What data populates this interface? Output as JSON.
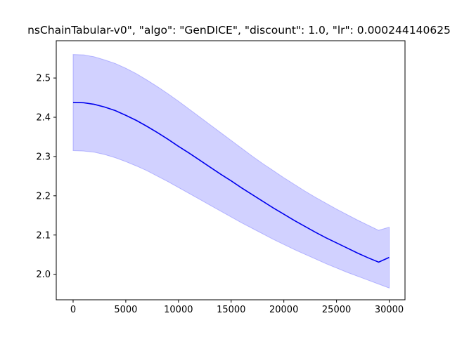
{
  "chart_data": {
    "type": "line",
    "title": "nsChainTabular-v0\", \"algo\": \"GenDICE\", \"discount\": 1.0, \"lr\": 0.000244140625",
    "xlabel": "",
    "ylabel": "",
    "xlim": [
      -1600,
      31500
    ],
    "ylim": [
      1.935,
      2.595
    ],
    "x_ticks": [
      0,
      5000,
      10000,
      15000,
      20000,
      25000,
      30000
    ],
    "y_ticks": [
      2.0,
      2.1,
      2.2,
      2.3,
      2.4,
      2.5
    ],
    "grid": false,
    "legend": "none",
    "series": [
      {
        "color": "#0000ee",
        "band_color": "#0000ff",
        "x": [
          0,
          1000,
          2000,
          3000,
          4000,
          5000,
          6000,
          7000,
          8000,
          9000,
          10000,
          11000,
          12000,
          13000,
          14000,
          15000,
          16000,
          17000,
          18000,
          19000,
          20000,
          21000,
          22000,
          23000,
          24000,
          25000,
          26000,
          27000,
          28000,
          29000,
          30000
        ],
        "mean": [
          2.438,
          2.437,
          2.433,
          2.426,
          2.417,
          2.405,
          2.392,
          2.377,
          2.361,
          2.344,
          2.326,
          2.309,
          2.291,
          2.273,
          2.255,
          2.238,
          2.22,
          2.203,
          2.186,
          2.169,
          2.153,
          2.137,
          2.122,
          2.107,
          2.093,
          2.08,
          2.067,
          2.054,
          2.042,
          2.031,
          2.043
        ],
        "upper": [
          2.56,
          2.559,
          2.554,
          2.546,
          2.537,
          2.525,
          2.511,
          2.495,
          2.478,
          2.46,
          2.441,
          2.421,
          2.401,
          2.381,
          2.361,
          2.341,
          2.321,
          2.301,
          2.282,
          2.264,
          2.246,
          2.229,
          2.212,
          2.196,
          2.181,
          2.166,
          2.152,
          2.138,
          2.125,
          2.112,
          2.12
        ],
        "lower": [
          2.315,
          2.314,
          2.311,
          2.305,
          2.297,
          2.287,
          2.276,
          2.264,
          2.25,
          2.236,
          2.221,
          2.206,
          2.191,
          2.176,
          2.161,
          2.146,
          2.131,
          2.117,
          2.103,
          2.089,
          2.076,
          2.063,
          2.051,
          2.039,
          2.027,
          2.016,
          2.005,
          1.995,
          1.985,
          1.975,
          1.965
        ]
      }
    ]
  }
}
